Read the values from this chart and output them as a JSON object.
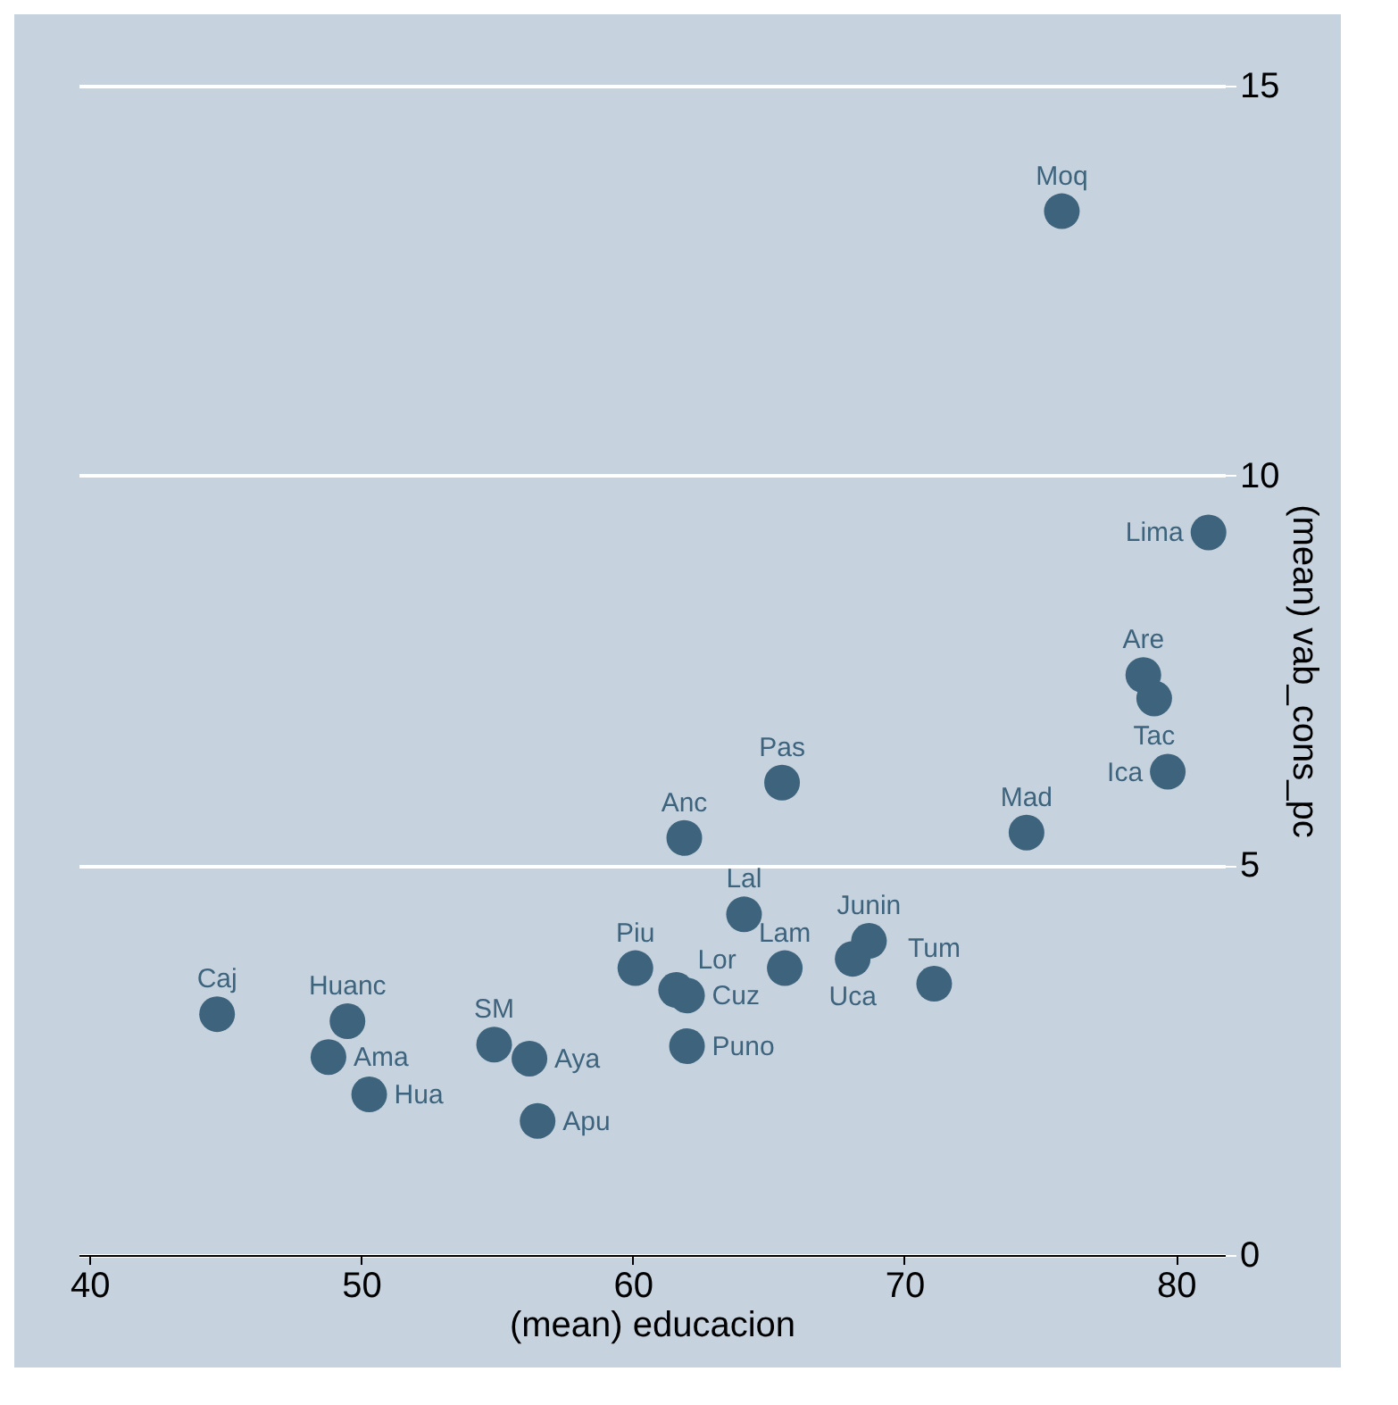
{
  "chart_data": {
    "type": "scatter",
    "xlabel": "(mean) educacion",
    "ylabel": "(mean) vab_cons_pc",
    "x": [
      44.7,
      49.5,
      48.8,
      50.3,
      54.9,
      56.2,
      56.5,
      60.1,
      61.6,
      62.0,
      62.0,
      61.9,
      65.5,
      64.1,
      65.6,
      68.1,
      68.7,
      71.1,
      74.5,
      75.8,
      81.2,
      78.8,
      79.2,
      79.7
    ],
    "series": [
      {
        "color": "#3e647d",
        "values": [
          3.09,
          3.0,
          2.54,
          2.06,
          2.7,
          2.52,
          1.72,
          3.68,
          3.4,
          3.33,
          2.68,
          5.35,
          6.06,
          4.37,
          3.68,
          3.8,
          4.03,
          3.48,
          5.42,
          13.39,
          9.27,
          7.44,
          7.14,
          6.2
        ]
      }
    ],
    "annotations": [
      {
        "text": "Caj",
        "x": 44.7,
        "y": 3.09
      },
      {
        "text": "Huanc",
        "x": 49.5,
        "y": 3.0
      },
      {
        "text": "Ama",
        "x": 48.8,
        "y": 2.54
      },
      {
        "text": "Hua",
        "x": 50.3,
        "y": 2.06
      },
      {
        "text": "SM",
        "x": 54.9,
        "y": 2.7
      },
      {
        "text": "Aya",
        "x": 56.2,
        "y": 2.52
      },
      {
        "text": "Apu",
        "x": 56.5,
        "y": 1.72
      },
      {
        "text": "Piu",
        "x": 60.1,
        "y": 3.68
      },
      {
        "text": "Lor",
        "x": 61.6,
        "y": 3.4
      },
      {
        "text": "Cuz",
        "x": 62.0,
        "y": 3.33
      },
      {
        "text": "Puno",
        "x": 62.0,
        "y": 2.68
      },
      {
        "text": "Anc",
        "x": 61.9,
        "y": 5.35
      },
      {
        "text": "Pas",
        "x": 65.5,
        "y": 6.06
      },
      {
        "text": "Lal",
        "x": 64.1,
        "y": 4.37
      },
      {
        "text": "Lam",
        "x": 65.6,
        "y": 3.68
      },
      {
        "text": "Uca",
        "x": 68.1,
        "y": 3.8
      },
      {
        "text": "Junin",
        "x": 68.7,
        "y": 4.03
      },
      {
        "text": "Tum",
        "x": 71.1,
        "y": 3.48
      },
      {
        "text": "Mad",
        "x": 74.5,
        "y": 5.42
      },
      {
        "text": "Moq",
        "x": 75.8,
        "y": 13.39
      },
      {
        "text": "Lima",
        "x": 81.2,
        "y": 9.27
      },
      {
        "text": "Are",
        "x": 78.8,
        "y": 7.44
      },
      {
        "text": "Tac",
        "x": 79.2,
        "y": 7.14
      },
      {
        "text": "Ica",
        "x": 79.7,
        "y": 6.2
      }
    ],
    "xlim": [
      39.6,
      81.8
    ],
    "xticks": [
      40,
      50,
      60,
      70,
      80
    ],
    "ylim": [
      0,
      15
    ],
    "yticks": [
      0,
      5,
      10,
      15
    ],
    "grid": "y",
    "marker": "circle"
  }
}
